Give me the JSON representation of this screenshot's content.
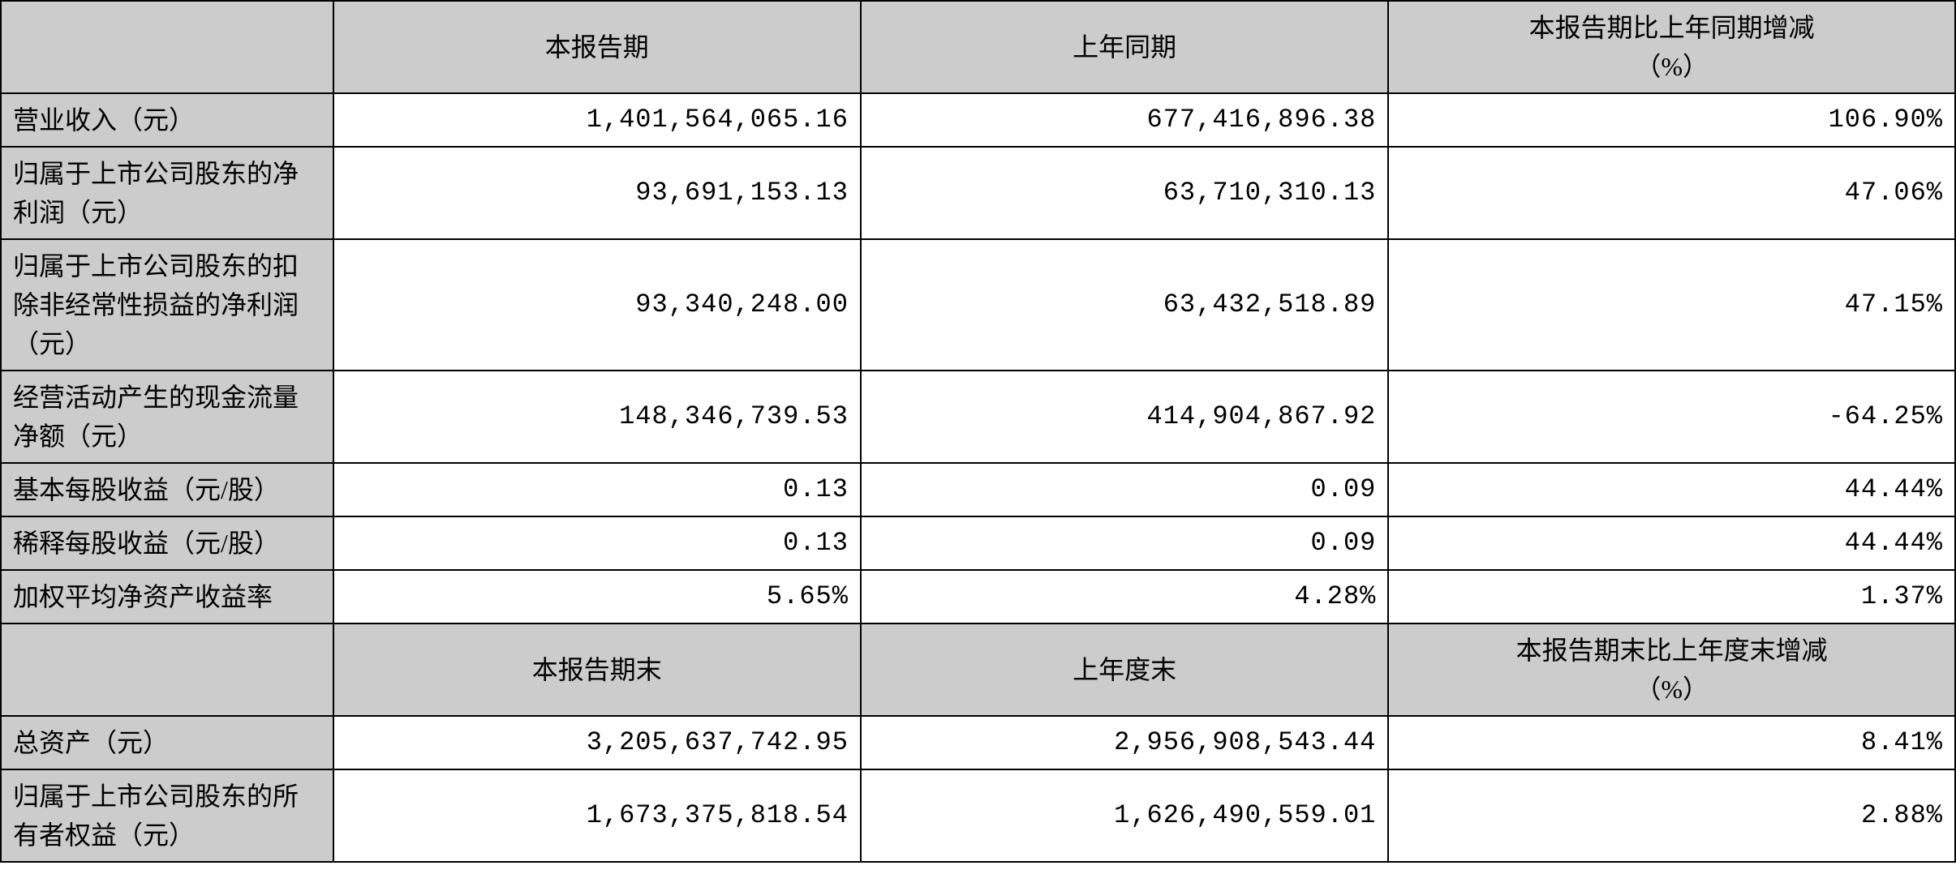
{
  "table": {
    "type": "table",
    "background_color": "#ffffff",
    "header_bg_color": "#cccccc",
    "border_color": "#000000",
    "font_family": "SimSun",
    "font_size": 32,
    "section1": {
      "headers": {
        "blank": "",
        "col1": "本报告期",
        "col2": "上年同期",
        "col3_line1": "本报告期比上年同期增减",
        "col3_line2": "（%）"
      },
      "rows": [
        {
          "label": "营业收入（元）",
          "val1": "1,401,564,065.16",
          "val2": "677,416,896.38",
          "val3": "106.90%"
        },
        {
          "label": "归属于上市公司股东的净利润（元）",
          "val1": "93,691,153.13",
          "val2": "63,710,310.13",
          "val3": "47.06%"
        },
        {
          "label": "归属于上市公司股东的扣除非经常性损益的净利润（元）",
          "val1": "93,340,248.00",
          "val2": "63,432,518.89",
          "val3": "47.15%"
        },
        {
          "label": "经营活动产生的现金流量净额（元）",
          "val1": "148,346,739.53",
          "val2": "414,904,867.92",
          "val3": "-64.25%"
        },
        {
          "label": "基本每股收益（元/股）",
          "val1": "0.13",
          "val2": "0.09",
          "val3": "44.44%"
        },
        {
          "label": "稀释每股收益（元/股）",
          "val1": "0.13",
          "val2": "0.09",
          "val3": "44.44%"
        },
        {
          "label": "加权平均净资产收益率",
          "val1": "5.65%",
          "val2": "4.28%",
          "val3": "1.37%"
        }
      ]
    },
    "section2": {
      "headers": {
        "blank": "",
        "col1": "本报告期末",
        "col2": "上年度末",
        "col3_line1": "本报告期末比上年度末增减",
        "col3_line2": "（%）"
      },
      "rows": [
        {
          "label": "总资产（元）",
          "val1": "3,205,637,742.95",
          "val2": "2,956,908,543.44",
          "val3": "8.41%"
        },
        {
          "label": "归属于上市公司股东的所有者权益（元）",
          "val1": "1,673,375,818.54",
          "val2": "1,626,490,559.01",
          "val3": "2.88%"
        }
      ]
    }
  }
}
